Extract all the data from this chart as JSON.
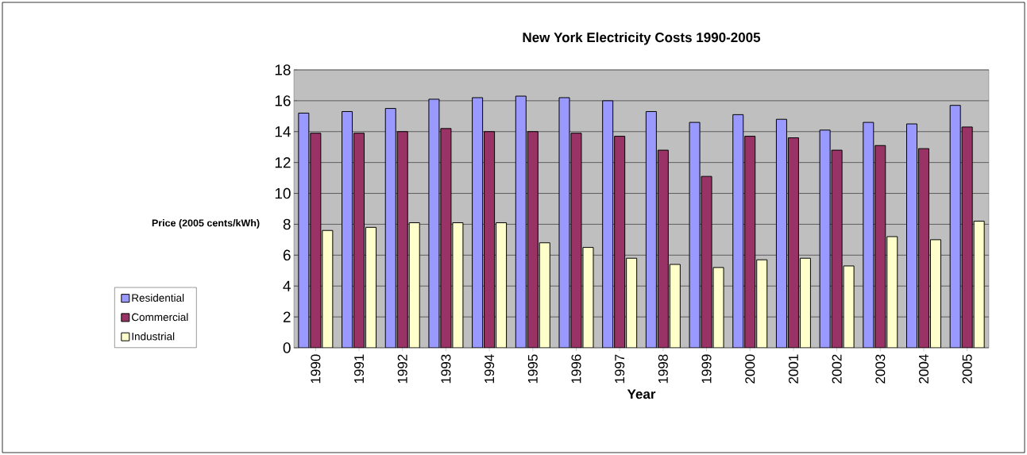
{
  "chart_data": {
    "type": "bar",
    "title": "New York Electricity Costs 1990-2005",
    "xlabel": "Year",
    "ylabel": "Price (2005 cents/kWh)",
    "categories": [
      "1990",
      "1991",
      "1992",
      "1993",
      "1994",
      "1995",
      "1996",
      "1997",
      "1998",
      "1999",
      "2000",
      "2001",
      "2002",
      "2003",
      "2004",
      "2005"
    ],
    "series": [
      {
        "name": "Residential",
        "color": "#9999ff",
        "values": [
          15.2,
          15.3,
          15.5,
          16.1,
          16.2,
          16.3,
          16.2,
          16.0,
          15.3,
          14.6,
          15.1,
          14.8,
          14.1,
          14.6,
          14.5,
          15.7
        ]
      },
      {
        "name": "Commercial",
        "color": "#993366",
        "values": [
          13.9,
          13.9,
          14.0,
          14.2,
          14.0,
          14.0,
          13.9,
          13.7,
          12.8,
          11.1,
          13.7,
          13.6,
          12.8,
          13.1,
          12.9,
          14.3
        ]
      },
      {
        "name": "Industrial",
        "color": "#ffffcc",
        "values": [
          7.6,
          7.8,
          8.1,
          8.1,
          8.1,
          6.8,
          6.5,
          5.8,
          5.4,
          5.2,
          5.7,
          5.8,
          5.3,
          7.2,
          7.0,
          8.2
        ]
      }
    ],
    "ylim": [
      0,
      18
    ],
    "yticks": [
      0,
      2,
      4,
      6,
      8,
      10,
      12,
      14,
      16,
      18
    ],
    "grid": "y",
    "legend": "left"
  }
}
